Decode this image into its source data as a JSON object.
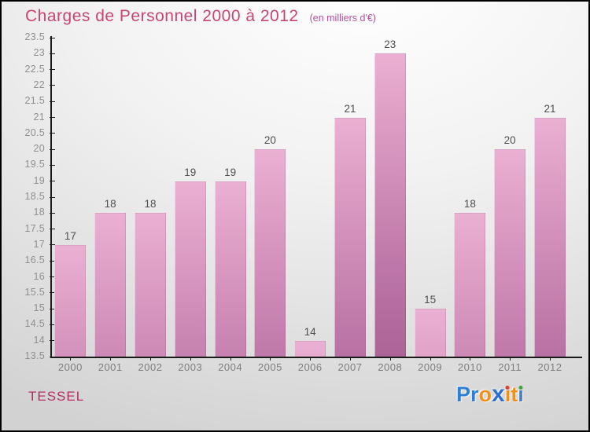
{
  "header": {
    "title": "Charges de Personnel 2000 à 2012",
    "subtitle": "(en milliers d'€)"
  },
  "footer": {
    "company": "TESSEL",
    "logo": {
      "text": "Proxiti",
      "letters": [
        {
          "char": "P",
          "color": "#2e7ed2"
        },
        {
          "char": "r",
          "color": "#2e7ed2"
        },
        {
          "char": "o",
          "color": "#f0911e"
        },
        {
          "char": "x",
          "color": "#2b6fd0",
          "bold": true
        },
        {
          "char": "i",
          "color": "#f0911e",
          "dot_color": "#e23a2e"
        },
        {
          "char": "t",
          "color": "#f0911e"
        },
        {
          "char": "i",
          "color": "#4a7fc1",
          "dot_color": "#3da43a"
        }
      ]
    }
  },
  "chart_data": {
    "type": "bar",
    "title": "Charges de Personnel 2000 à 2012",
    "subtitle": "(en milliers d'€)",
    "categories": [
      "2000",
      "2001",
      "2002",
      "2003",
      "2004",
      "2005",
      "2006",
      "2007",
      "2008",
      "2009",
      "2010",
      "2011",
      "2012"
    ],
    "values": [
      17,
      18,
      18,
      19,
      19,
      20,
      14,
      21,
      23,
      15,
      18,
      20,
      21
    ],
    "xlabel": "",
    "ylabel": "",
    "ylim": [
      13.5,
      23.5
    ],
    "ytick_step": 0.5,
    "grid": false,
    "legend": false,
    "bar_color_top": "#eab0d2",
    "bar_color_bottom": "#aa6295",
    "axis_color": "#1a1a1a",
    "ytick_label_color": "#8f8f8f",
    "xtick_label_color": "#7d7d7d",
    "value_label_color": "#4f4f4f"
  }
}
